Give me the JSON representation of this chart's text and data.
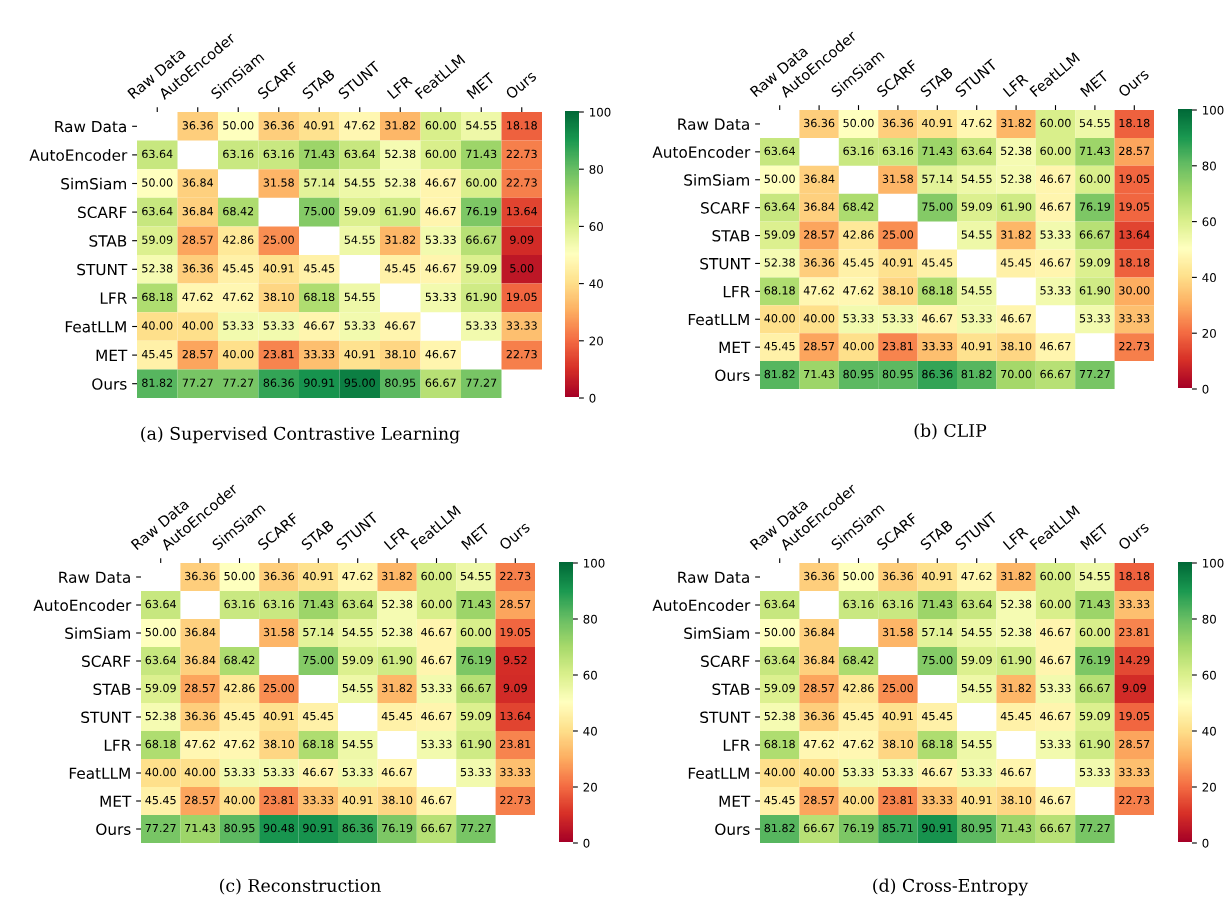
{
  "chart_data": [
    {
      "type": "heatmap",
      "title": "(a) Supervised Contrastive Learning",
      "categories": [
        "Raw Data",
        "AutoEncoder",
        "SimSiam",
        "SCARF",
        "STAB",
        "STUNT",
        "LFR",
        "FeatLLM",
        "MET",
        "Ours"
      ],
      "y_categories": [
        "Raw Data",
        "AutoEncoder",
        "SimSiam",
        "SCARF",
        "STAB",
        "STUNT",
        "LFR",
        "FeatLLM",
        "MET",
        "Ours"
      ],
      "cells": [
        [
          null,
          36.36,
          50.0,
          36.36,
          40.91,
          47.62,
          31.82,
          60.0,
          54.55,
          18.18
        ],
        [
          63.64,
          null,
          63.16,
          63.16,
          71.43,
          63.64,
          52.38,
          60.0,
          71.43,
          22.73
        ],
        [
          50.0,
          36.84,
          null,
          31.58,
          57.14,
          54.55,
          52.38,
          46.67,
          60.0,
          22.73
        ],
        [
          63.64,
          36.84,
          68.42,
          null,
          75.0,
          59.09,
          61.9,
          46.67,
          76.19,
          13.64
        ],
        [
          59.09,
          28.57,
          42.86,
          25.0,
          null,
          54.55,
          31.82,
          53.33,
          66.67,
          9.09
        ],
        [
          52.38,
          36.36,
          45.45,
          40.91,
          45.45,
          null,
          45.45,
          46.67,
          59.09,
          5.0
        ],
        [
          68.18,
          47.62,
          47.62,
          38.1,
          68.18,
          54.55,
          null,
          53.33,
          61.9,
          19.05
        ],
        [
          40.0,
          40.0,
          53.33,
          53.33,
          46.67,
          53.33,
          46.67,
          null,
          53.33,
          33.33
        ],
        [
          45.45,
          28.57,
          40.0,
          23.81,
          33.33,
          40.91,
          38.1,
          46.67,
          null,
          22.73
        ],
        [
          81.82,
          77.27,
          77.27,
          86.36,
          90.91,
          95.0,
          80.95,
          66.67,
          77.27,
          null
        ]
      ],
      "cell_labels": [
        [
          null,
          "36.36",
          "50.00",
          "36.36",
          "40.91",
          "47.62",
          "31.82",
          "60.00",
          "54.55",
          "18.18"
        ],
        [
          "63.64",
          null,
          "63.16",
          "63.16",
          "71.43",
          "63.64",
          "52.38",
          "60.00",
          "71.43",
          "22.73"
        ],
        [
          "50.00",
          "36.84",
          null,
          "31.58",
          "57.14",
          "54.55",
          "52.38",
          "46.67",
          "60.00",
          "22.73"
        ],
        [
          "63.64",
          "36.84",
          "68.42",
          null,
          "75.00",
          "59.09",
          "61.90",
          "46.67",
          "76.19",
          "13.64"
        ],
        [
          "59.09",
          "28.57",
          "42.86",
          "25.00",
          null,
          "54.55",
          "31.82",
          "53.33",
          "66.67",
          "9.09"
        ],
        [
          "52.38",
          "36.36",
          "45.45",
          "40.91",
          "45.45",
          null,
          "45.45",
          "46.67",
          "59.09",
          "5.00"
        ],
        [
          "68.18",
          "47.62",
          "47.62",
          "38.10",
          "68.18",
          "54.55",
          null,
          "53.33",
          "61.90",
          "19.05"
        ],
        [
          "40.00",
          "40.00",
          "53.33",
          "53.33",
          "46.67",
          "53.33",
          "46.67",
          null,
          "53.33",
          "33.33"
        ],
        [
          "45.45",
          "28.57",
          "40.00",
          "23.81",
          "33.33",
          "40.91",
          "38.10",
          "46.67",
          null,
          "22.73"
        ],
        [
          "81.82",
          "77.27",
          "77.27",
          "86.36",
          "90.91",
          "95.00",
          "80.95",
          "66.67",
          "77.27",
          null
        ]
      ],
      "clim": [
        0,
        100
      ],
      "cticks": [
        0,
        20,
        40,
        60,
        80,
        100
      ],
      "data_labels": true
    },
    {
      "type": "heatmap",
      "title": "(b) CLIP",
      "categories": [
        "Raw Data",
        "AutoEncoder",
        "SimSiam",
        "SCARF",
        "STAB",
        "STUNT",
        "LFR",
        "FeatLLM",
        "MET",
        "Ours"
      ],
      "y_categories": [
        "Raw Data",
        "AutoEncoder",
        "SimSiam",
        "SCARF",
        "STAB",
        "STUNT",
        "LFR",
        "FeatLLM",
        "MET",
        "Ours"
      ],
      "cells": [
        [
          null,
          36.36,
          50.0,
          36.36,
          40.91,
          47.62,
          31.82,
          60.0,
          54.55,
          18.18
        ],
        [
          63.64,
          null,
          63.16,
          63.16,
          71.43,
          63.64,
          52.38,
          60.0,
          71.43,
          28.57
        ],
        [
          50.0,
          36.84,
          null,
          31.58,
          57.14,
          54.55,
          52.38,
          46.67,
          60.0,
          19.05
        ],
        [
          63.64,
          36.84,
          68.42,
          null,
          75.0,
          59.09,
          61.9,
          46.67,
          76.19,
          19.05
        ],
        [
          59.09,
          28.57,
          42.86,
          25.0,
          null,
          54.55,
          31.82,
          53.33,
          66.67,
          13.64
        ],
        [
          52.38,
          36.36,
          45.45,
          40.91,
          45.45,
          null,
          45.45,
          46.67,
          59.09,
          18.18
        ],
        [
          68.18,
          47.62,
          47.62,
          38.1,
          68.18,
          54.55,
          null,
          53.33,
          61.9,
          30.0
        ],
        [
          40.0,
          40.0,
          53.33,
          53.33,
          46.67,
          53.33,
          46.67,
          null,
          53.33,
          33.33
        ],
        [
          45.45,
          28.57,
          40.0,
          23.81,
          33.33,
          40.91,
          38.1,
          46.67,
          null,
          22.73
        ],
        [
          81.82,
          71.43,
          80.95,
          80.95,
          86.36,
          81.82,
          70.0,
          66.67,
          77.27,
          null
        ]
      ],
      "cell_labels": [
        [
          null,
          "36.36",
          "50.00",
          "36.36",
          "40.91",
          "47.62",
          "31.82",
          "60.00",
          "54.55",
          "18.18"
        ],
        [
          "63.64",
          null,
          "63.16",
          "63.16",
          "71.43",
          "63.64",
          "52.38",
          "60.00",
          "71.43",
          "28.57"
        ],
        [
          "50.00",
          "36.84",
          null,
          "31.58",
          "57.14",
          "54.55",
          "52.38",
          "46.67",
          "60.00",
          "19.05"
        ],
        [
          "63.64",
          "36.84",
          "68.42",
          null,
          "75.00",
          "59.09",
          "61.90",
          "46.67",
          "76.19",
          "19.05"
        ],
        [
          "59.09",
          "28.57",
          "42.86",
          "25.00",
          null,
          "54.55",
          "31.82",
          "53.33",
          "66.67",
          "13.64"
        ],
        [
          "52.38",
          "36.36",
          "45.45",
          "40.91",
          "45.45",
          null,
          "45.45",
          "46.67",
          "59.09",
          "18.18"
        ],
        [
          "68.18",
          "47.62",
          "47.62",
          "38.10",
          "68.18",
          "54.55",
          null,
          "53.33",
          "61.90",
          "30.00"
        ],
        [
          "40.00",
          "40.00",
          "53.33",
          "53.33",
          "46.67",
          "53.33",
          "46.67",
          null,
          "53.33",
          "33.33"
        ],
        [
          "45.45",
          "28.57",
          "40.00",
          "23.81",
          "33.33",
          "40.91",
          "38.10",
          "46.67",
          null,
          "22.73"
        ],
        [
          "81.82",
          "71.43",
          "80.95",
          "80.95",
          "86.36",
          "81.82",
          "70.00",
          "66.67",
          "77.27",
          null
        ]
      ],
      "clim": [
        0,
        100
      ],
      "cticks": [
        0,
        20,
        40,
        60,
        80,
        100
      ],
      "data_labels": true
    },
    {
      "type": "heatmap",
      "title": "(c) Reconstruction",
      "categories": [
        "Raw Data",
        "AutoEncoder",
        "SimSiam",
        "SCARF",
        "STAB",
        "STUNT",
        "LFR",
        "FeatLLM",
        "MET",
        "Ours"
      ],
      "y_categories": [
        "Raw Data",
        "AutoEncoder",
        "SimSiam",
        "SCARF",
        "STAB",
        "STUNT",
        "LFR",
        "FeatLLM",
        "MET",
        "Ours"
      ],
      "cells": [
        [
          null,
          36.36,
          50.0,
          36.36,
          40.91,
          47.62,
          31.82,
          60.0,
          54.55,
          22.73
        ],
        [
          63.64,
          null,
          63.16,
          63.16,
          71.43,
          63.64,
          52.38,
          60.0,
          71.43,
          28.57
        ],
        [
          50.0,
          36.84,
          null,
          31.58,
          57.14,
          54.55,
          52.38,
          46.67,
          60.0,
          19.05
        ],
        [
          63.64,
          36.84,
          68.42,
          null,
          75.0,
          59.09,
          61.9,
          46.67,
          76.19,
          9.52
        ],
        [
          59.09,
          28.57,
          42.86,
          25.0,
          null,
          54.55,
          31.82,
          53.33,
          66.67,
          9.09
        ],
        [
          52.38,
          36.36,
          45.45,
          40.91,
          45.45,
          null,
          45.45,
          46.67,
          59.09,
          13.64
        ],
        [
          68.18,
          47.62,
          47.62,
          38.1,
          68.18,
          54.55,
          null,
          53.33,
          61.9,
          23.81
        ],
        [
          40.0,
          40.0,
          53.33,
          53.33,
          46.67,
          53.33,
          46.67,
          null,
          53.33,
          33.33
        ],
        [
          45.45,
          28.57,
          40.0,
          23.81,
          33.33,
          40.91,
          38.1,
          46.67,
          null,
          22.73
        ],
        [
          77.27,
          71.43,
          80.95,
          90.48,
          90.91,
          86.36,
          76.19,
          66.67,
          77.27,
          null
        ]
      ],
      "cell_labels": [
        [
          null,
          "36.36",
          "50.00",
          "36.36",
          "40.91",
          "47.62",
          "31.82",
          "60.00",
          "54.55",
          "22.73"
        ],
        [
          "63.64",
          null,
          "63.16",
          "63.16",
          "71.43",
          "63.64",
          "52.38",
          "60.00",
          "71.43",
          "28.57"
        ],
        [
          "50.00",
          "36.84",
          null,
          "31.58",
          "57.14",
          "54.55",
          "52.38",
          "46.67",
          "60.00",
          "19.05"
        ],
        [
          "63.64",
          "36.84",
          "68.42",
          null,
          "75.00",
          "59.09",
          "61.90",
          "46.67",
          "76.19",
          "9.52"
        ],
        [
          "59.09",
          "28.57",
          "42.86",
          "25.00",
          null,
          "54.55",
          "31.82",
          "53.33",
          "66.67",
          "9.09"
        ],
        [
          "52.38",
          "36.36",
          "45.45",
          "40.91",
          "45.45",
          null,
          "45.45",
          "46.67",
          "59.09",
          "13.64"
        ],
        [
          "68.18",
          "47.62",
          "47.62",
          "38.10",
          "68.18",
          "54.55",
          null,
          "53.33",
          "61.90",
          "23.81"
        ],
        [
          "40.00",
          "40.00",
          "53.33",
          "53.33",
          "46.67",
          "53.33",
          "46.67",
          null,
          "53.33",
          "33.33"
        ],
        [
          "45.45",
          "28.57",
          "40.00",
          "23.81",
          "33.33",
          "40.91",
          "38.10",
          "46.67",
          null,
          "22.73"
        ],
        [
          "77.27",
          "71.43",
          "80.95",
          "90.48",
          "90.91",
          "86.36",
          "76.19",
          "66.67",
          "77.27",
          null
        ]
      ],
      "clim": [
        0,
        100
      ],
      "cticks": [
        0,
        20,
        40,
        60,
        80,
        100
      ],
      "data_labels": true
    },
    {
      "type": "heatmap",
      "title": "(d) Cross-Entropy",
      "categories": [
        "Raw Data",
        "AutoEncoder",
        "SimSiam",
        "SCARF",
        "STAB",
        "STUNT",
        "LFR",
        "FeatLLM",
        "MET",
        "Ours"
      ],
      "y_categories": [
        "Raw Data",
        "AutoEncoder",
        "SimSiam",
        "SCARF",
        "STAB",
        "STUNT",
        "LFR",
        "FeatLLM",
        "MET",
        "Ours"
      ],
      "cells": [
        [
          null,
          36.36,
          50.0,
          36.36,
          40.91,
          47.62,
          31.82,
          60.0,
          54.55,
          18.18
        ],
        [
          63.64,
          null,
          63.16,
          63.16,
          71.43,
          63.64,
          52.38,
          60.0,
          71.43,
          33.33
        ],
        [
          50.0,
          36.84,
          null,
          31.58,
          57.14,
          54.55,
          52.38,
          46.67,
          60.0,
          23.81
        ],
        [
          63.64,
          36.84,
          68.42,
          null,
          75.0,
          59.09,
          61.9,
          46.67,
          76.19,
          14.29
        ],
        [
          59.09,
          28.57,
          42.86,
          25.0,
          null,
          54.55,
          31.82,
          53.33,
          66.67,
          9.09
        ],
        [
          52.38,
          36.36,
          45.45,
          40.91,
          45.45,
          null,
          45.45,
          46.67,
          59.09,
          19.05
        ],
        [
          68.18,
          47.62,
          47.62,
          38.1,
          68.18,
          54.55,
          null,
          53.33,
          61.9,
          28.57
        ],
        [
          40.0,
          40.0,
          53.33,
          53.33,
          46.67,
          53.33,
          46.67,
          null,
          53.33,
          33.33
        ],
        [
          45.45,
          28.57,
          40.0,
          23.81,
          33.33,
          40.91,
          38.1,
          46.67,
          null,
          22.73
        ],
        [
          81.82,
          66.67,
          76.19,
          85.71,
          90.91,
          80.95,
          71.43,
          66.67,
          77.27,
          null
        ]
      ],
      "cell_labels": [
        [
          null,
          "36.36",
          "50.00",
          "36.36",
          "40.91",
          "47.62",
          "31.82",
          "60.00",
          "54.55",
          "18.18"
        ],
        [
          "63.64",
          null,
          "63.16",
          "63.16",
          "71.43",
          "63.64",
          "52.38",
          "60.00",
          "71.43",
          "33.33"
        ],
        [
          "50.00",
          "36.84",
          null,
          "31.58",
          "57.14",
          "54.55",
          "52.38",
          "46.67",
          "60.00",
          "23.81"
        ],
        [
          "63.64",
          "36.84",
          "68.42",
          null,
          "75.00",
          "59.09",
          "61.90",
          "46.67",
          "76.19",
          "14.29"
        ],
        [
          "59.09",
          "28.57",
          "42.86",
          "25.00",
          null,
          "54.55",
          "31.82",
          "53.33",
          "66.67",
          "9.09"
        ],
        [
          "52.38",
          "36.36",
          "45.45",
          "40.91",
          "45.45",
          null,
          "45.45",
          "46.67",
          "59.09",
          "19.05"
        ],
        [
          "68.18",
          "47.62",
          "47.62",
          "38.10",
          "68.18",
          "54.55",
          null,
          "53.33",
          "61.90",
          "28.57"
        ],
        [
          "40.00",
          "40.00",
          "53.33",
          "53.33",
          "46.67",
          "53.33",
          "46.67",
          null,
          "53.33",
          "33.33"
        ],
        [
          "45.45",
          "28.57",
          "40.00",
          "23.81",
          "33.33",
          "40.91",
          "38.10",
          "46.67",
          null,
          "22.73"
        ],
        [
          "81.82",
          "66.67",
          "76.19",
          "85.71",
          "90.91",
          "80.95",
          "71.43",
          "66.67",
          "77.27",
          null
        ]
      ],
      "clim": [
        0,
        100
      ],
      "cticks": [
        0,
        20,
        40,
        60,
        80,
        100
      ],
      "data_labels": true
    }
  ]
}
